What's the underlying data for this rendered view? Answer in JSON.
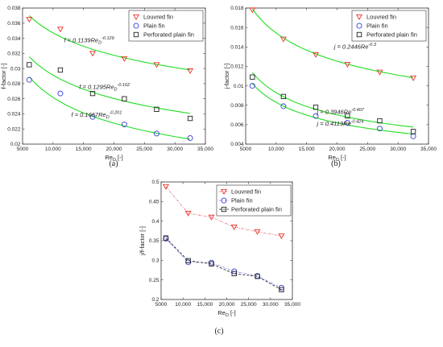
{
  "colors": {
    "louvred": "#e8322a",
    "plain": "#3a40d8",
    "perforated": "#222222",
    "fit": "#22dd22",
    "fit_louvred_c": "#e86a6a",
    "fit_plain_c": "#8080ee",
    "fit_perf_c": "#111111",
    "axis": "#333333"
  },
  "chart_data": [
    {
      "id": "a",
      "type": "scatter",
      "panel_label": "(a)",
      "xlabel_main": "Re",
      "xlabel_sub": "D",
      "xlabel_unit": "[-]",
      "ylabel": "f-factor [-]",
      "xlim": [
        5000,
        35000
      ],
      "ylim": [
        0.02,
        0.038
      ],
      "xticks": [
        5000,
        10000,
        15000,
        20000,
        25000,
        30000,
        35000
      ],
      "xtick_labels": [
        "5000",
        "10,000",
        "15,000",
        "20,000",
        "25,000",
        "30,000",
        "35,000"
      ],
      "yticks": [
        0.02,
        0.022,
        0.024,
        0.026,
        0.028,
        0.03,
        0.032,
        0.034,
        0.036,
        0.038
      ],
      "ytick_labels": [
        "0.02",
        "0.022",
        "0.024",
        "0.026",
        "0.028",
        "0.03",
        "0.032",
        "0.034",
        "0.036",
        "0.038"
      ],
      "legend": {
        "placement": "top-right",
        "entries": [
          "Louvred fin",
          "Plain fin",
          "Perforated plain fin"
        ]
      },
      "series": [
        {
          "marker": "triangle-down",
          "color": "louvred",
          "x": [
            6100,
            11200,
            16500,
            21700,
            27000,
            32500
          ],
          "y": [
            0.0365,
            0.0352,
            0.032,
            0.0313,
            0.0305,
            0.0297
          ]
        },
        {
          "marker": "circle",
          "color": "plain",
          "x": [
            6100,
            11200,
            16500,
            21700,
            27000,
            32500
          ],
          "y": [
            0.0285,
            0.0267,
            0.0236,
            0.0226,
            0.0214,
            0.0208
          ]
        },
        {
          "marker": "square",
          "color": "perforated",
          "x": [
            6100,
            11200,
            16500,
            21700,
            27000,
            32500
          ],
          "y": [
            0.0305,
            0.0298,
            0.0267,
            0.026,
            0.0246,
            0.0234
          ]
        }
      ],
      "fits": [
        {
          "coef": 0.1139,
          "exp": -0.129,
          "x_range": [
            6100,
            32500
          ]
        },
        {
          "coef": 0.1295,
          "exp": -0.162,
          "x_range": [
            6100,
            32500
          ]
        },
        {
          "coef": 0.1667,
          "exp": -0.201,
          "x_range": [
            6100,
            32500
          ]
        }
      ],
      "equations": [
        {
          "text": "f = 0.1139Re",
          "sub": "D",
          "sup": "-0.129",
          "ax": 11800,
          "ay": 0.0335
        },
        {
          "text": "f = 0.1295Re",
          "sub": "D",
          "sup": "-0.162",
          "ax": 14300,
          "ay": 0.0273
        },
        {
          "text": "f = 0.1667Re",
          "sub": "D",
          "sup": "-0.201",
          "ax": 13000,
          "ay": 0.0236
        }
      ]
    },
    {
      "id": "b",
      "type": "scatter",
      "panel_label": "(b)",
      "xlabel_main": "Re",
      "xlabel_sub": "D",
      "xlabel_unit": "[-]",
      "ylabel": "j-factor [-]",
      "xlim": [
        5000,
        35000
      ],
      "ylim": [
        0.004,
        0.018
      ],
      "xticks": [
        5000,
        10000,
        15000,
        20000,
        25000,
        30000,
        35000
      ],
      "xtick_labels": [
        "5000",
        "10,000",
        "15,000",
        "20,000",
        "25,000",
        "30,000",
        "35,000"
      ],
      "yticks": [
        0.004,
        0.006,
        0.008,
        0.01,
        0.012,
        0.014,
        0.016,
        0.018
      ],
      "ytick_labels": [
        "0.004",
        "0.006",
        "0.008",
        "0.01",
        "0.012",
        "0.014",
        "0.016",
        "0.018"
      ],
      "legend": {
        "placement": "top-right",
        "entries": [
          "Louvred fin",
          "Plain fin",
          "Perforated plain fin"
        ]
      },
      "series": [
        {
          "marker": "triangle-down",
          "color": "louvred",
          "x": [
            6100,
            11200,
            16500,
            21700,
            27000,
            32500
          ],
          "y": [
            0.0178,
            0.0148,
            0.0132,
            0.0122,
            0.0114,
            0.0108
          ]
        },
        {
          "marker": "circle",
          "color": "plain",
          "x": [
            6100,
            11200,
            16500,
            21700,
            27000,
            32500
          ],
          "y": [
            0.01,
            0.0079,
            0.0069,
            0.0062,
            0.0056,
            0.0048
          ]
        },
        {
          "marker": "square",
          "color": "perforated",
          "x": [
            6100,
            11200,
            16500,
            21700,
            27000,
            32500
          ],
          "y": [
            0.0109,
            0.0089,
            0.0078,
            0.0069,
            0.0064,
            0.0053
          ]
        }
      ],
      "fits": [
        {
          "coef": 0.2446,
          "exp": -0.3,
          "x_range": [
            6100,
            32500
          ]
        },
        {
          "coef": 0.3946,
          "exp": -0.407,
          "x_range": [
            6100,
            32500
          ]
        },
        {
          "coef": 0.4119,
          "exp": -0.424,
          "x_range": [
            6100,
            32500
          ]
        }
      ],
      "equations": [
        {
          "text": "j = 0.2446Re",
          "sub": "",
          "sup": "-0.3",
          "ax": 19500,
          "ay": 0.0138
        },
        {
          "text": "j = 0.3946Re",
          "sub": "",
          "sup": "-0.407",
          "ax": 16700,
          "ay": 0.0071
        },
        {
          "text": "j = 0.4119Re",
          "sub": "",
          "sup": "-0.424",
          "ax": 16700,
          "ay": 0.0059
        }
      ]
    },
    {
      "id": "c",
      "type": "line",
      "panel_label": "(c)",
      "xlabel_main": "Re",
      "xlabel_sub": "D",
      "xlabel_unit": "[-]",
      "ylabel": "j/f-factor [-]",
      "xlim": [
        5000,
        35000
      ],
      "ylim": [
        0.2,
        0.5
      ],
      "xticks": [
        5000,
        10000,
        15000,
        20000,
        25000,
        30000,
        35000
      ],
      "xtick_labels": [
        "5000",
        "10,000",
        "15,000",
        "20,000",
        "25,000",
        "30,000",
        "35,000"
      ],
      "yticks": [
        0.2,
        0.25,
        0.3,
        0.35,
        0.4,
        0.45,
        0.5
      ],
      "ytick_labels": [
        "0.2",
        "0.25",
        "0.3",
        "0.35",
        "0.4",
        "0.45",
        "0.5"
      ],
      "legend": {
        "placement": "top-right",
        "entries": [
          "Louvred fin",
          "Plain fin",
          "Perforated plain fin"
        ]
      },
      "series": [
        {
          "marker": "triangle-down",
          "color": "louvred",
          "line_color": "fit_louvred_c",
          "x": [
            6100,
            11200,
            16500,
            21700,
            27000,
            32500
          ],
          "y": [
            0.488,
            0.42,
            0.41,
            0.385,
            0.373,
            0.362
          ]
        },
        {
          "marker": "circle",
          "color": "plain",
          "line_color": "fit_plain_c",
          "x": [
            6100,
            11200,
            16500,
            21700,
            27000,
            32500
          ],
          "y": [
            0.355,
            0.295,
            0.294,
            0.272,
            0.26,
            0.23
          ]
        },
        {
          "marker": "square",
          "color": "perforated",
          "line_color": "fit_perf_c",
          "x": [
            6100,
            11200,
            16500,
            21700,
            27000,
            32500
          ],
          "y": [
            0.357,
            0.299,
            0.291,
            0.266,
            0.259,
            0.225
          ]
        }
      ]
    }
  ]
}
